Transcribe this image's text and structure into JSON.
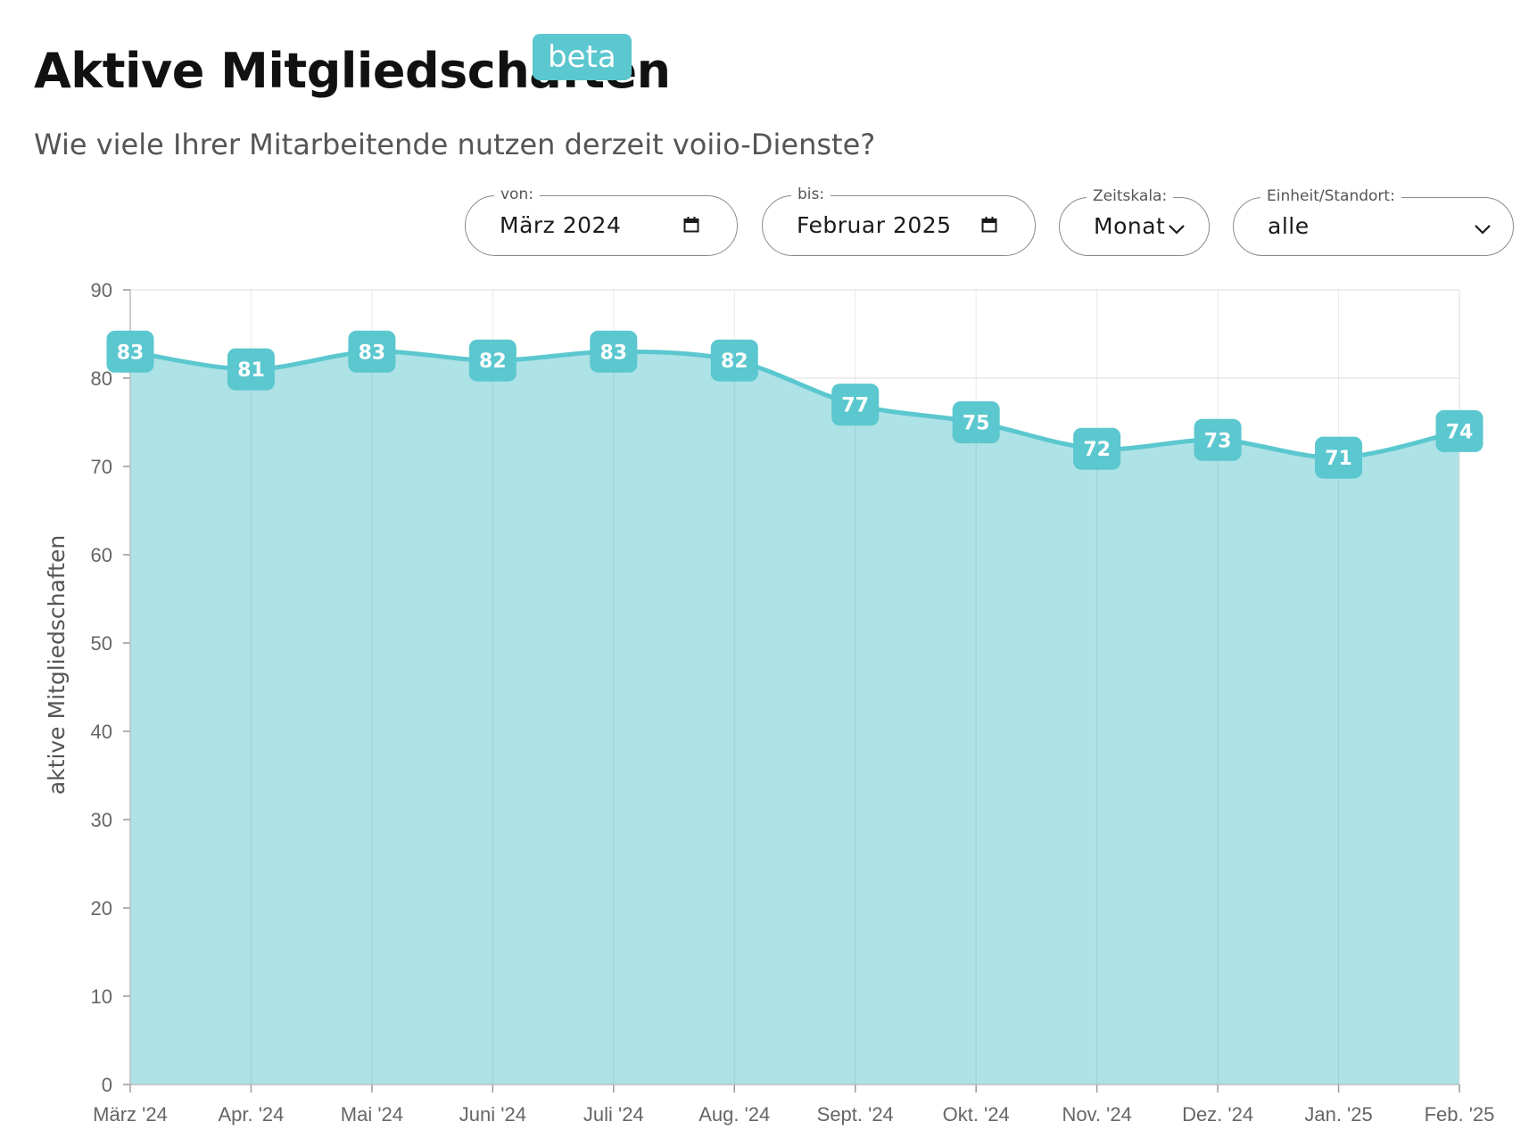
{
  "header": {
    "title": "Aktive Mitgliedschaften",
    "badge": "beta",
    "subtitle": "Wie viele Ihrer Mitarbeitende nutzen derzeit voiio-Dienste?"
  },
  "filters": {
    "from": {
      "label": "von:",
      "value": "März  2024",
      "icon": "calendar-icon"
    },
    "to": {
      "label": "bis:",
      "value": "Februar  2025",
      "icon": "calendar-icon"
    },
    "timescale": {
      "label": "Zeitskala:",
      "value": "Monat",
      "icon": "chevron-down-icon"
    },
    "unit": {
      "label": "Einheit/Standort:",
      "value": "alle",
      "icon": "chevron-down-icon"
    }
  },
  "colors": {
    "accent": "#5bc7cf",
    "area_fill": "#ade2e6"
  },
  "chart_data": {
    "type": "area",
    "title": "",
    "xlabel": "",
    "ylabel": "aktive Mitgliedschaften",
    "categories": [
      "März '24",
      "Apr. '24",
      "Mai '24",
      "Juni '24",
      "Juli '24",
      "Aug. '24",
      "Sept. '24",
      "Okt. '24",
      "Nov. '24",
      "Dez. '24",
      "Jan. '25",
      "Feb. '25"
    ],
    "values": [
      83,
      81,
      83,
      82,
      83,
      82,
      77,
      75,
      72,
      73,
      71,
      74
    ],
    "ylim": [
      0,
      90
    ],
    "yticks": [
      0,
      10,
      20,
      30,
      40,
      50,
      60,
      70,
      80,
      90
    ],
    "grid": true,
    "data_labels": true
  }
}
